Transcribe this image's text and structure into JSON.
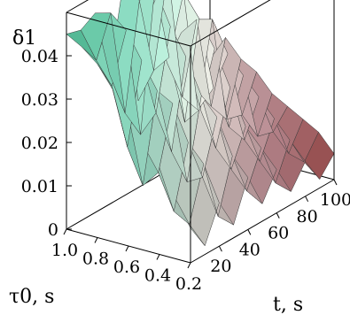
{
  "chart_data": {
    "type": "surface3d",
    "z_label": "δ1",
    "x_label": "τ0, s",
    "y_label": "t, s",
    "z_ticks": [
      "0",
      "0.01",
      "0.02",
      "0.03",
      "0.04"
    ],
    "x_ticks": [
      "1.0",
      "0.8",
      "0.6",
      "0.4",
      "0.2"
    ],
    "y_ticks": [
      "20",
      "40",
      "60",
      "80",
      "100"
    ],
    "z_range": [
      0,
      0.05
    ],
    "x_range": [
      0.2,
      1.0
    ],
    "y_range": [
      0,
      100
    ],
    "colormap": [
      "#3a9a78",
      "#8fd8c0",
      "#f0f0e8",
      "#d8a0a8",
      "#c05a5a"
    ],
    "grid": false,
    "box": true,
    "surface": {
      "tau0": [
        1.0,
        0.9,
        0.8,
        0.7,
        0.6,
        0.5,
        0.4,
        0.3,
        0.2
      ],
      "t": [
        0,
        10,
        20,
        30,
        40,
        50,
        60,
        70,
        80,
        90,
        100
      ],
      "delta1": [
        [
          0.045,
          0.044,
          0.046,
          0.03,
          0.05,
          0.02,
          0.04,
          0.025,
          0.03,
          0.015,
          0.02
        ],
        [
          0.043,
          0.038,
          0.047,
          0.022,
          0.046,
          0.028,
          0.049,
          0.018,
          0.034,
          0.012,
          0.026
        ],
        [
          0.04,
          0.033,
          0.044,
          0.018,
          0.05,
          0.032,
          0.045,
          0.016,
          0.035,
          0.01,
          0.022
        ],
        [
          0.035,
          0.02,
          0.038,
          0.024,
          0.042,
          0.018,
          0.04,
          0.022,
          0.028,
          0.012,
          0.02
        ],
        [
          0.03,
          0.012,
          0.032,
          0.016,
          0.036,
          0.022,
          0.034,
          0.014,
          0.024,
          0.008,
          0.016
        ],
        [
          0.024,
          0.016,
          0.03,
          0.01,
          0.028,
          0.014,
          0.026,
          0.012,
          0.02,
          0.01,
          0.014
        ],
        [
          0.02,
          0.008,
          0.022,
          0.012,
          0.024,
          0.01,
          0.018,
          0.008,
          0.016,
          0.006,
          0.012
        ],
        [
          0.014,
          0.006,
          0.018,
          0.004,
          0.016,
          0.006,
          0.014,
          0.004,
          0.012,
          0.005,
          0.01
        ],
        [
          0.008,
          0.002,
          0.01,
          0.003,
          0.012,
          0.004,
          0.01,
          0.003,
          0.008,
          0.002,
          0.006
        ]
      ]
    }
  }
}
